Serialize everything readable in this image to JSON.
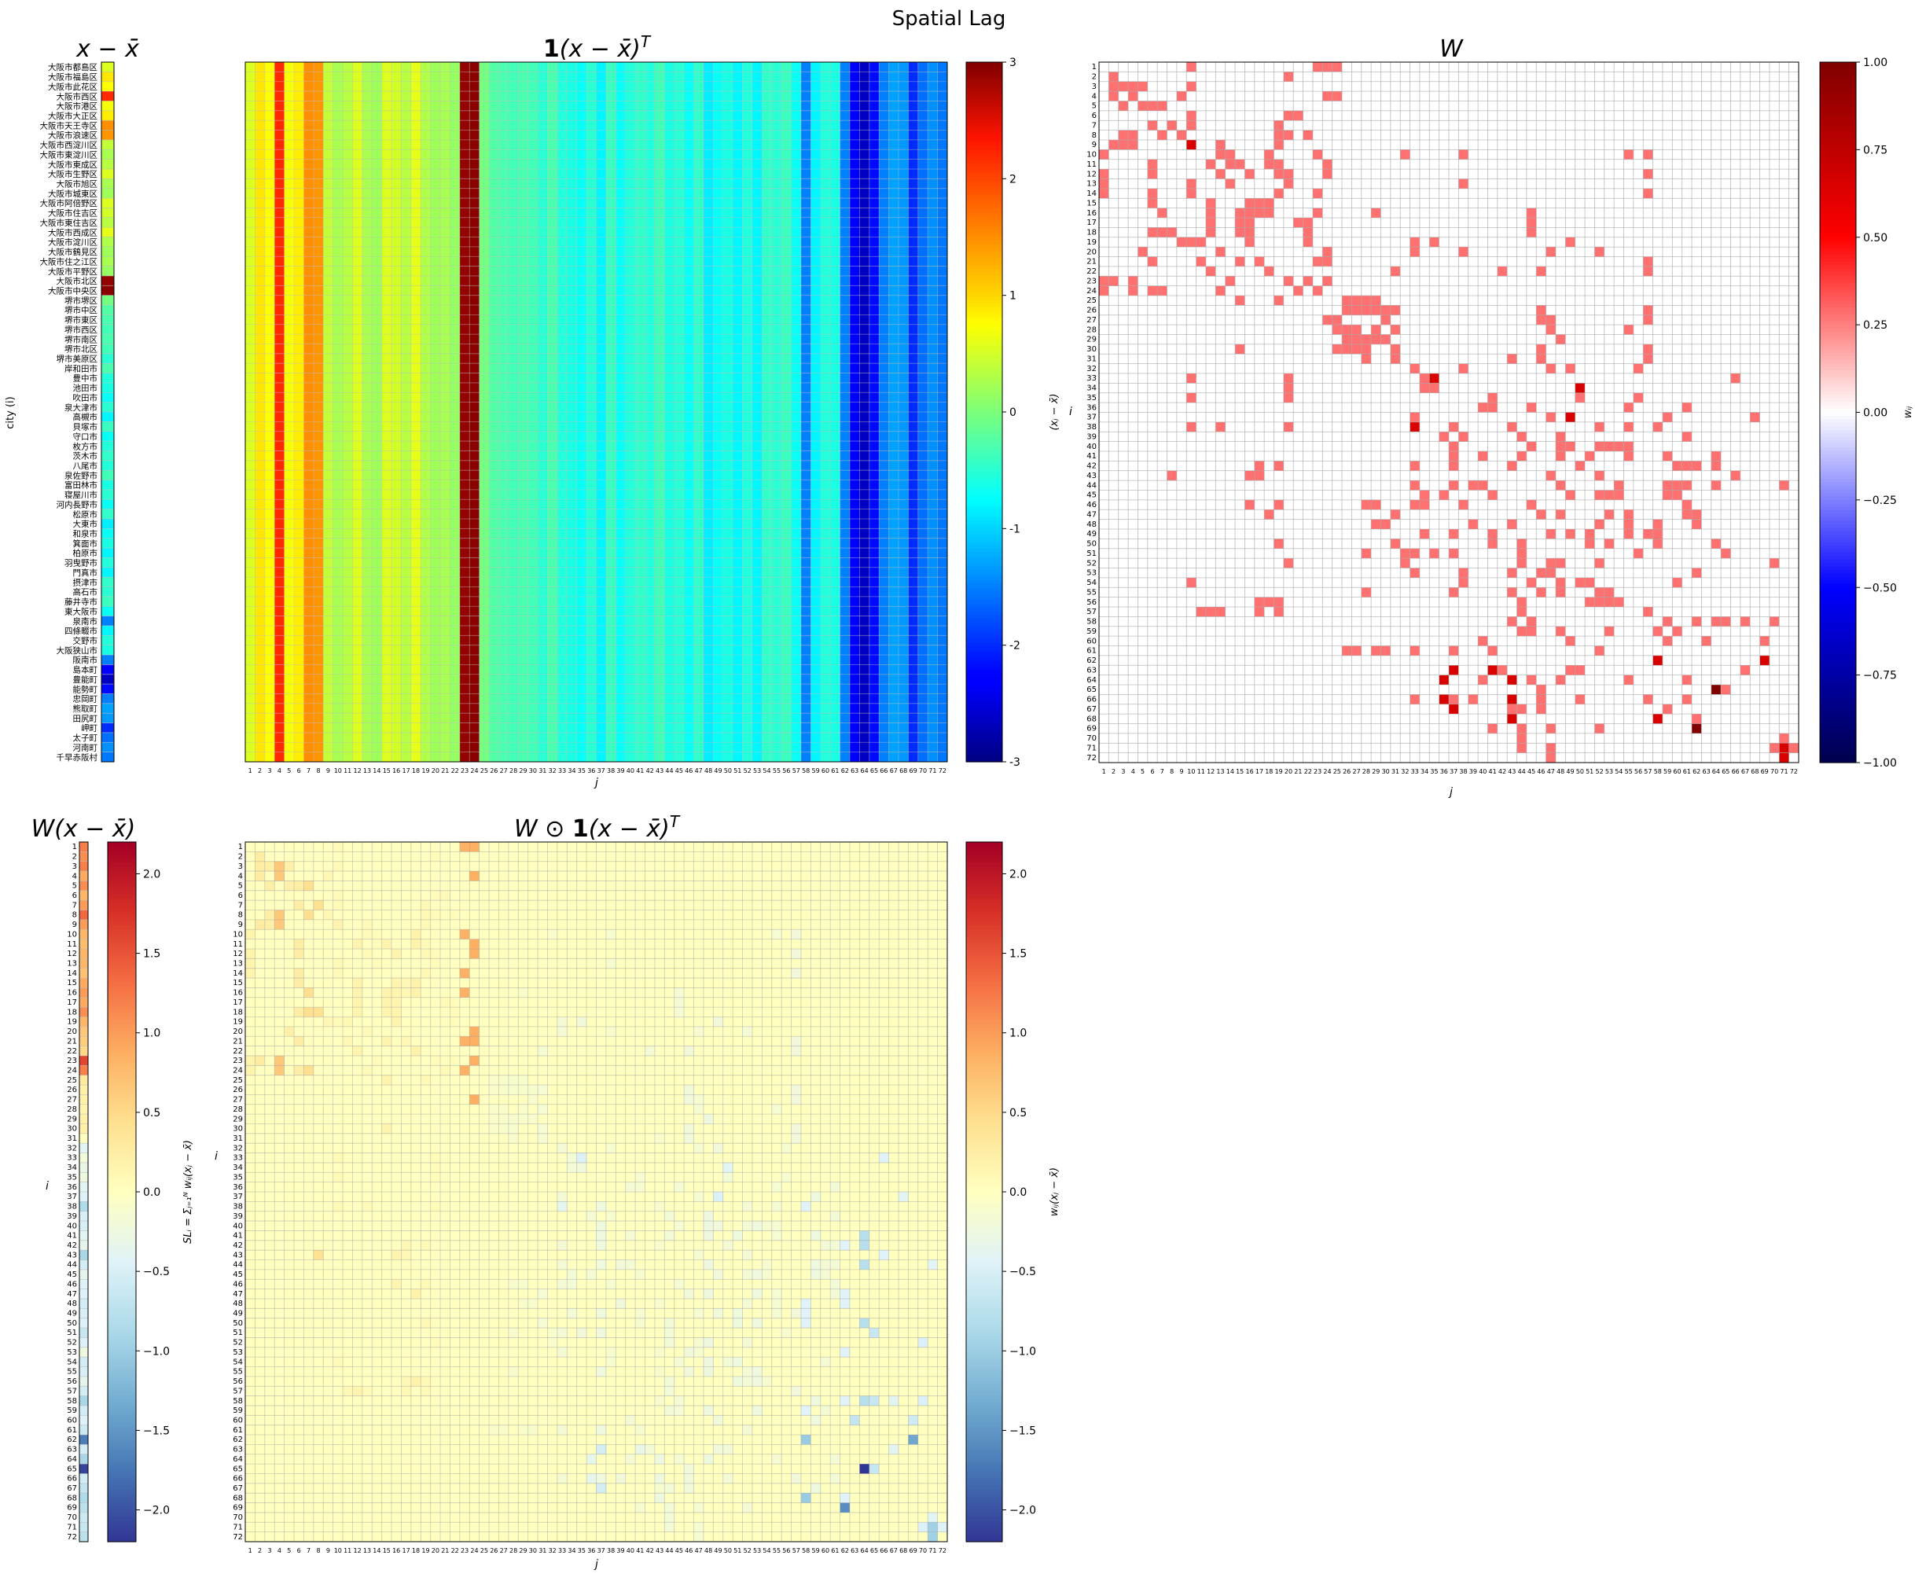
{
  "suptitle": "Spatial Lag",
  "city_names": [
    "大阪市都島区",
    "大阪市福島区",
    "大阪市此花区",
    "大阪市西区",
    "大阪市港区",
    "大阪市大正区",
    "大阪市天王寺区",
    "大阪市浪速区",
    "大阪市西淀川区",
    "大阪市東淀川区",
    "大阪市東成区",
    "大阪市生野区",
    "大阪市旭区",
    "大阪市城東区",
    "大阪市阿倍野区",
    "大阪市住吉区",
    "大阪市東住吉区",
    "大阪市西成区",
    "大阪市淀川区",
    "大阪市鶴見区",
    "大阪市住之江区",
    "大阪市平野区",
    "大阪市北区",
    "大阪市中央区",
    "堺市堺区",
    "堺市中区",
    "堺市東区",
    "堺市西区",
    "堺市南区",
    "堺市北区",
    "堺市美原区",
    "岸和田市",
    "豊中市",
    "池田市",
    "吹田市",
    "泉大津市",
    "高槻市",
    "貝塚市",
    "守口市",
    "枚方市",
    "茨木市",
    "八尾市",
    "泉佐野市",
    "富田林市",
    "寝屋川市",
    "河内長野市",
    "松原市",
    "大東市",
    "和泉市",
    "箕面市",
    "柏原市",
    "羽曳野市",
    "門真市",
    "摂津市",
    "高石市",
    "藤井寺市",
    "東大阪市",
    "泉南市",
    "四條畷市",
    "交野市",
    "大阪狭山市",
    "阪南市",
    "島本町",
    "豊能町",
    "能勢町",
    "忠岡町",
    "熊取町",
    "田尻町",
    "岬町",
    "太子町",
    "河南町",
    "千早赤阪村"
  ],
  "chart_data": [
    {
      "type": "heatmap",
      "title": "x − x̄",
      "ylabel": "city (i)",
      "cmap": "jet",
      "clim": [
        -3,
        3
      ],
      "values": [
        0.55,
        0.9,
        0.75,
        2.2,
        0.7,
        0.85,
        1.5,
        1.45,
        0.4,
        0.25,
        0.35,
        0.55,
        0.25,
        0.2,
        0.55,
        0.5,
        0.35,
        0.6,
        0.3,
        0.2,
        0.25,
        0.15,
        2.9,
        2.95,
        -0.05,
        -0.25,
        -0.3,
        -0.35,
        -0.3,
        -0.35,
        -0.5,
        -0.3,
        -0.55,
        -0.6,
        -0.7,
        -0.5,
        -0.8,
        -0.4,
        -0.7,
        -0.55,
        -0.45,
        -0.55,
        -0.35,
        -0.6,
        -0.5,
        -0.7,
        -0.45,
        -0.85,
        -0.7,
        -0.6,
        -0.8,
        -0.55,
        -0.8,
        -0.45,
        -0.5,
        -0.4,
        -0.7,
        -1.5,
        -0.8,
        -0.55,
        -0.6,
        -1.5,
        -2.3,
        -2.65,
        -2.2,
        -1.5,
        -1.3,
        -1.35,
        -2.0,
        -1.6,
        -1.4,
        -1.55
      ]
    },
    {
      "type": "heatmap",
      "title": "1(x − x̄)ᵀ",
      "xlabel": "j",
      "colorbar_label": "(xⱼ − x̄)",
      "cmap": "jet",
      "clim": [
        -3,
        3
      ],
      "colorbar_ticks": [
        3,
        2,
        1,
        0,
        -1,
        -2,
        -3
      ]
    },
    {
      "type": "heatmap",
      "title": "W",
      "xlabel": "j",
      "ylabel": "i",
      "colorbar_label": "wᵢⱼ",
      "cmap": "seismic",
      "clim": [
        -1,
        1
      ],
      "colorbar_ticks": [
        "1.00",
        "0.75",
        "0.50",
        "0.25",
        "0.00",
        "−0.25",
        "−0.50",
        "−0.75",
        "−1.00"
      ],
      "neighbors": {
        "1": [
          10,
          23,
          24,
          25
        ],
        "2": [
          2,
          20
        ],
        "3": [
          2,
          3,
          4,
          5,
          10
        ],
        "4": [
          2,
          4,
          9,
          24,
          25
        ],
        "5": [
          3,
          5,
          6,
          7
        ],
        "6": [
          10,
          20,
          21
        ],
        "7": [
          6,
          8,
          10,
          19
        ],
        "8": [
          3,
          4,
          7,
          9,
          19,
          20,
          22
        ],
        "9": [
          2,
          3,
          4,
          10,
          13,
          19
        ],
        "10": [
          1,
          13,
          14,
          18,
          23,
          32,
          38,
          55,
          57
        ],
        "11": [
          6,
          12,
          14,
          15,
          18,
          19,
          24
        ],
        "12": [
          1,
          6,
          13,
          16,
          19,
          20,
          24,
          57
        ],
        "13": [
          1,
          10,
          14,
          20,
          38
        ],
        "14": [
          1,
          6,
          10,
          19,
          23,
          57
        ],
        "15": [
          6,
          12,
          16,
          17,
          18
        ],
        "16": [
          7,
          12,
          15,
          16,
          17,
          18,
          23,
          29,
          45
        ],
        "17": [
          12,
          15,
          16,
          21,
          22,
          45
        ],
        "18": [
          6,
          7,
          8,
          12,
          15,
          16,
          22,
          45
        ],
        "19": [
          9,
          10,
          11,
          16,
          22,
          33,
          35,
          49
        ],
        "20": [
          5,
          13,
          24,
          33,
          38,
          47,
          52
        ],
        "21": [
          6,
          11,
          15,
          17,
          23,
          24,
          57
        ],
        "22": [
          12,
          18,
          31,
          42,
          46,
          57
        ],
        "23": [
          1,
          2,
          4,
          14,
          20,
          22,
          24
        ],
        "24": [
          1,
          4,
          6,
          7,
          13,
          21,
          23
        ],
        "25": [
          15,
          19,
          26,
          27,
          28,
          29
        ],
        "26": [
          26,
          27,
          28,
          29,
          31,
          30,
          46,
          57
        ],
        "27": [
          24,
          25,
          30,
          46,
          47,
          57
        ],
        "28": [
          25,
          26,
          27,
          29,
          31,
          55,
          47
        ],
        "29": [
          26,
          27,
          28,
          29,
          30,
          48
        ],
        "30": [
          15,
          25,
          26,
          27,
          28,
          31,
          46,
          57
        ],
        "31": [
          28,
          31,
          43,
          46,
          57
        ],
        "32": [
          33,
          38,
          47,
          49,
          56
        ],
        "33": [
          10,
          20,
          35,
          34,
          66
        ],
        "34": [
          20,
          34,
          35,
          50
        ],
        "35": [
          10,
          20,
          41,
          50,
          56
        ],
        "36": [
          40,
          41,
          45,
          55,
          61
        ],
        "37": [
          33,
          47,
          59,
          68
        ],
        "38": [
          10,
          13,
          20,
          37,
          43,
          52,
          55,
          58
        ],
        "39": [
          36,
          38,
          44,
          48,
          61
        ],
        "40": [
          37,
          45,
          48,
          49,
          52,
          53,
          54,
          55
        ],
        "41": [
          37,
          40,
          44,
          48,
          51,
          55,
          59,
          64
        ],
        "42": [
          17,
          19,
          33,
          37,
          43,
          50,
          60,
          61,
          62,
          64
        ],
        "43": [
          8,
          16,
          17,
          47,
          52,
          66
        ],
        "44": [
          33,
          37,
          39,
          40,
          48,
          54,
          59,
          60,
          61,
          64,
          71
        ],
        "45": [
          34,
          36,
          41,
          49,
          52,
          53,
          54,
          59,
          60
        ],
        "46": [
          16,
          19,
          28,
          29,
          33,
          34,
          38,
          45,
          61
        ],
        "47": [
          18,
          31,
          46,
          48,
          53,
          55,
          61,
          62
        ],
        "48": [
          29,
          30,
          39,
          43,
          52,
          55,
          58,
          62
        ],
        "49": [
          34,
          37,
          41,
          47,
          49,
          51,
          55,
          57,
          58
        ],
        "50": [
          19,
          31,
          41,
          44,
          51,
          53,
          58,
          64
        ],
        "51": [
          28,
          32,
          33,
          35,
          37,
          44,
          56,
          65
        ],
        "52": [
          20,
          32,
          44,
          47,
          48,
          52,
          70
        ],
        "53": [
          33,
          38,
          43,
          46,
          47,
          62
        ],
        "54": [
          10,
          38,
          45,
          48,
          50,
          51,
          60
        ],
        "55": [
          28,
          37,
          43,
          46,
          48,
          52,
          53
        ],
        "56": [
          17,
          18,
          19,
          44,
          51,
          52,
          53,
          54
        ],
        "57": [
          11,
          12,
          13,
          17,
          19,
          44,
          57
        ],
        "58": [
          43,
          45,
          59,
          62,
          64,
          65,
          67,
          70
        ],
        "59": [
          44,
          45,
          48,
          53,
          58,
          60
        ],
        "60": [
          40,
          49,
          59,
          63,
          69
        ],
        "61": [
          26,
          27,
          29,
          30,
          33,
          37,
          41,
          52
        ],
        "62": [
          58,
          69
        ],
        "63": [
          37,
          41,
          42,
          49,
          50,
          67
        ],
        "64": [
          40,
          43,
          45,
          48,
          55,
          61
        ],
        "65": [
          46,
          64,
          65
        ],
        "66": [
          33,
          37,
          39,
          46,
          50,
          57,
          61
        ],
        "67": [
          37,
          43,
          44,
          46,
          59
        ],
        "68": [
          43,
          58,
          62
        ],
        "69": [
          41,
          44,
          47,
          52,
          62
        ],
        "70": [
          44,
          71
        ],
        "71": [
          44,
          47,
          70,
          72
        ],
        "72": [
          47,
          71
        ]
      },
      "strong": {
        "9": [
          10
        ],
        "33": [
          35
        ],
        "34": [
          50
        ],
        "37": [
          49
        ],
        "38": [
          33
        ],
        "62": [
          58,
          69
        ],
        "63": [
          37,
          41
        ],
        "64": [
          36,
          43
        ],
        "66": [
          36,
          43
        ],
        "67": [
          37
        ],
        "68": [
          43,
          58
        ],
        "69": [
          62
        ],
        "71": [
          71
        ],
        "72": [
          71
        ]
      },
      "darkest": {
        "65": [
          64
        ],
        "69": [
          62
        ]
      }
    },
    {
      "type": "heatmap",
      "title": "W(x − x̄)",
      "ylabel": "i",
      "colorbar_label": "SLᵢ = Σⱼ₌₁ᴺ wᵢⱼ(xⱼ − x̄)",
      "cmap": "RdYlBu_r",
      "clim": [
        -2.2,
        2.2
      ],
      "colorbar_ticks": [
        "2.0",
        "1.5",
        "1.0",
        "0.5",
        "0.0",
        "−0.5",
        "−1.0",
        "−1.5",
        "−2.0"
      ],
      "values": [
        1.2,
        1.1,
        1.2,
        0.9,
        1.1,
        0.8,
        1.0,
        1.35,
        1.0,
        0.8,
        0.75,
        0.8,
        0.8,
        0.7,
        0.9,
        1.0,
        0.9,
        1.1,
        0.8,
        0.65,
        0.6,
        0.5,
        1.6,
        1.2,
        0.3,
        0.2,
        0.2,
        0.15,
        0.2,
        0.2,
        0.0,
        -0.4,
        -0.2,
        -0.3,
        -0.25,
        -0.4,
        -0.45,
        -0.85,
        -0.5,
        -0.5,
        -0.4,
        -0.35,
        -0.9,
        -0.55,
        -0.35,
        -0.45,
        -0.45,
        -0.55,
        -0.5,
        -0.45,
        -0.65,
        -0.45,
        -0.25,
        -0.55,
        -0.5,
        -0.35,
        -0.55,
        -0.9,
        -0.55,
        -0.45,
        -0.6,
        -1.7,
        -0.55,
        -0.9,
        -2.1,
        -0.55,
        -0.7,
        -0.85,
        -0.75,
        -0.6,
        -0.65,
        -0.75
      ]
    },
    {
      "type": "heatmap",
      "title": "W ⊙ 1(x − x̄)ᵀ",
      "xlabel": "j",
      "ylabel": "i",
      "colorbar_label": "wᵢⱼ(xⱼ − x̄)",
      "cmap": "RdYlBu_r",
      "clim": [
        -2.2,
        2.2
      ],
      "colorbar_ticks": [
        "2.0",
        "1.5",
        "1.0",
        "0.5",
        "0.0",
        "−0.5",
        "−1.0",
        "−1.5",
        "−2.0"
      ]
    }
  ]
}
